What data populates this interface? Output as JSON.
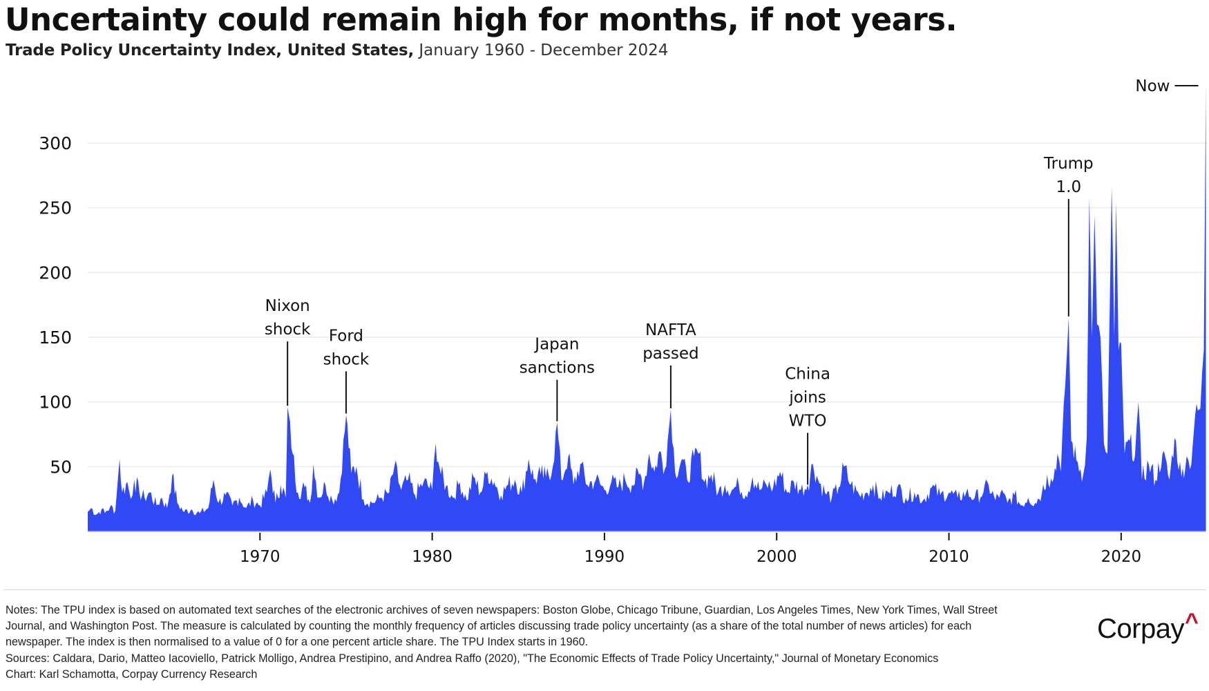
{
  "header": {
    "title": "Uncertainty could remain high for months, if not years.",
    "subtitle_strong": "Trade Policy Uncertainty Index, United States,",
    "subtitle_light": " January 1960 - December 2024"
  },
  "chart_data": {
    "type": "area",
    "title": "Uncertainty could remain high for months, if not years.",
    "subtitle": "Trade Policy Uncertainty Index, United States, January 1960 - December 2024",
    "xlabel": "",
    "ylabel": "",
    "xlim": [
      1960,
      2025
    ],
    "ylim": [
      0,
      345
    ],
    "grid": "horizontal",
    "legend": "none",
    "y_ticks": [
      50,
      100,
      150,
      200,
      250,
      300
    ],
    "y_tick_labels": [
      "50",
      "100",
      "150",
      "200",
      "250",
      "300"
    ],
    "x_ticks": [
      1970,
      1980,
      1990,
      2000,
      2010,
      2020
    ],
    "x_tick_labels": [
      "1970",
      "1980",
      "1990",
      "2000",
      "2010",
      "2020"
    ],
    "fill_color": "#3149f5",
    "series": [
      {
        "name": "Trade Policy Uncertainty Index (US)",
        "points": [
          [
            1960.0,
            15
          ],
          [
            1960.2,
            18
          ],
          [
            1960.5,
            13
          ],
          [
            1960.8,
            17
          ],
          [
            1961.0,
            14
          ],
          [
            1961.3,
            19
          ],
          [
            1961.6,
            16
          ],
          [
            1961.75,
            40
          ],
          [
            1961.85,
            56
          ],
          [
            1962.0,
            30
          ],
          [
            1962.3,
            38
          ],
          [
            1962.5,
            25
          ],
          [
            1962.7,
            40
          ],
          [
            1963.0,
            30
          ],
          [
            1963.3,
            26
          ],
          [
            1963.6,
            30
          ],
          [
            1964.0,
            20
          ],
          [
            1964.3,
            26
          ],
          [
            1964.6,
            18
          ],
          [
            1964.9,
            43
          ],
          [
            1965.2,
            22
          ],
          [
            1965.6,
            15
          ],
          [
            1966.0,
            17
          ],
          [
            1966.5,
            14
          ],
          [
            1967.0,
            18
          ],
          [
            1967.3,
            40
          ],
          [
            1967.6,
            22
          ],
          [
            1968.0,
            28
          ],
          [
            1968.4,
            20
          ],
          [
            1968.8,
            26
          ],
          [
            1969.2,
            18
          ],
          [
            1969.6,
            24
          ],
          [
            1970.0,
            20
          ],
          [
            1970.4,
            30
          ],
          [
            1970.6,
            48
          ],
          [
            1970.9,
            22
          ],
          [
            1971.2,
            36
          ],
          [
            1971.5,
            26
          ],
          [
            1971.6,
            96
          ],
          [
            1971.9,
            60
          ],
          [
            1972.2,
            30
          ],
          [
            1972.6,
            34
          ],
          [
            1972.9,
            22
          ],
          [
            1973.1,
            52
          ],
          [
            1973.4,
            26
          ],
          [
            1973.8,
            36
          ],
          [
            1974.2,
            24
          ],
          [
            1974.6,
            30
          ],
          [
            1975.0,
            90
          ],
          [
            1975.3,
            45
          ],
          [
            1975.6,
            50
          ],
          [
            1976.0,
            25
          ],
          [
            1976.5,
            22
          ],
          [
            1977.0,
            26
          ],
          [
            1977.5,
            30
          ],
          [
            1977.8,
            50
          ],
          [
            1978.2,
            32
          ],
          [
            1978.6,
            40
          ],
          [
            1979.0,
            28
          ],
          [
            1979.5,
            38
          ],
          [
            1980.0,
            32
          ],
          [
            1980.2,
            68
          ],
          [
            1980.5,
            44
          ],
          [
            1980.8,
            35
          ],
          [
            1981.2,
            26
          ],
          [
            1981.6,
            38
          ],
          [
            1982.0,
            24
          ],
          [
            1982.4,
            42
          ],
          [
            1982.8,
            30
          ],
          [
            1983.2,
            46
          ],
          [
            1983.6,
            38
          ],
          [
            1984.0,
            28
          ],
          [
            1984.4,
            36
          ],
          [
            1984.8,
            40
          ],
          [
            1985.2,
            30
          ],
          [
            1985.6,
            56
          ],
          [
            1985.9,
            40
          ],
          [
            1986.3,
            44
          ],
          [
            1986.6,
            42
          ],
          [
            1987.0,
            50
          ],
          [
            1987.25,
            84
          ],
          [
            1987.5,
            40
          ],
          [
            1987.9,
            58
          ],
          [
            1988.2,
            36
          ],
          [
            1988.6,
            52
          ],
          [
            1989.0,
            36
          ],
          [
            1989.5,
            40
          ],
          [
            1990.0,
            32
          ],
          [
            1990.4,
            38
          ],
          [
            1990.8,
            34
          ],
          [
            1991.2,
            40
          ],
          [
            1991.6,
            36
          ],
          [
            1992.0,
            44
          ],
          [
            1992.3,
            38
          ],
          [
            1992.6,
            60
          ],
          [
            1992.9,
            46
          ],
          [
            1993.2,
            62
          ],
          [
            1993.5,
            48
          ],
          [
            1993.85,
            94
          ],
          [
            1994.1,
            46
          ],
          [
            1994.5,
            56
          ],
          [
            1994.8,
            40
          ],
          [
            1995.2,
            58
          ],
          [
            1995.5,
            60
          ],
          [
            1995.8,
            38
          ],
          [
            1996.2,
            44
          ],
          [
            1996.6,
            30
          ],
          [
            1997.0,
            36
          ],
          [
            1997.4,
            32
          ],
          [
            1997.8,
            36
          ],
          [
            1998.2,
            28
          ],
          [
            1998.6,
            42
          ],
          [
            1999.0,
            32
          ],
          [
            1999.4,
            36
          ],
          [
            1999.8,
            34
          ],
          [
            2000.2,
            46
          ],
          [
            2000.6,
            30
          ],
          [
            2001.0,
            38
          ],
          [
            2001.4,
            32
          ],
          [
            2001.8,
            36
          ],
          [
            2002.1,
            52
          ],
          [
            2002.4,
            40
          ],
          [
            2002.8,
            30
          ],
          [
            2003.2,
            26
          ],
          [
            2003.6,
            34
          ],
          [
            2003.9,
            50
          ],
          [
            2004.3,
            36
          ],
          [
            2004.8,
            28
          ],
          [
            2005.2,
            30
          ],
          [
            2005.6,
            36
          ],
          [
            2006.0,
            26
          ],
          [
            2006.5,
            30
          ],
          [
            2007.0,
            34
          ],
          [
            2007.5,
            26
          ],
          [
            2008.0,
            30
          ],
          [
            2008.5,
            24
          ],
          [
            2009.0,
            34
          ],
          [
            2009.5,
            28
          ],
          [
            2010.0,
            30
          ],
          [
            2010.5,
            26
          ],
          [
            2011.0,
            30
          ],
          [
            2011.5,
            26
          ],
          [
            2012.0,
            30
          ],
          [
            2012.3,
            36
          ],
          [
            2012.7,
            24
          ],
          [
            2013.0,
            30
          ],
          [
            2013.4,
            22
          ],
          [
            2013.8,
            28
          ],
          [
            2014.2,
            20
          ],
          [
            2014.6,
            26
          ],
          [
            2015.0,
            22
          ],
          [
            2015.4,
            30
          ],
          [
            2015.7,
            44
          ],
          [
            2016.0,
            38
          ],
          [
            2016.3,
            60
          ],
          [
            2016.5,
            46
          ],
          [
            2016.75,
            112
          ],
          [
            2016.95,
            165
          ],
          [
            2017.1,
            70
          ],
          [
            2017.4,
            55
          ],
          [
            2017.8,
            44
          ],
          [
            2018.0,
            72
          ],
          [
            2018.15,
            258
          ],
          [
            2018.3,
            150
          ],
          [
            2018.45,
            244
          ],
          [
            2018.6,
            160
          ],
          [
            2018.8,
            150
          ],
          [
            2019.0,
            68
          ],
          [
            2019.2,
            60
          ],
          [
            2019.45,
            266
          ],
          [
            2019.6,
            150
          ],
          [
            2019.7,
            254
          ],
          [
            2019.85,
            140
          ],
          [
            2020.0,
            145
          ],
          [
            2020.2,
            60
          ],
          [
            2020.5,
            70
          ],
          [
            2020.8,
            58
          ],
          [
            2021.0,
            100
          ],
          [
            2021.2,
            40
          ],
          [
            2021.6,
            52
          ],
          [
            2022.0,
            40
          ],
          [
            2022.4,
            60
          ],
          [
            2022.8,
            40
          ],
          [
            2023.1,
            72
          ],
          [
            2023.5,
            42
          ],
          [
            2023.8,
            58
          ],
          [
            2024.0,
            48
          ],
          [
            2024.3,
            90
          ],
          [
            2024.6,
            95
          ],
          [
            2024.8,
            140
          ],
          [
            2024.92,
            345
          ]
        ]
      }
    ],
    "annotations": [
      {
        "label_lines": [
          "Nixon",
          "shock"
        ],
        "x": 1971.6,
        "y": 96
      },
      {
        "label_lines": [
          "Ford",
          "shock"
        ],
        "x": 1975.0,
        "y": 90
      },
      {
        "label_lines": [
          "Japan",
          "sanctions"
        ],
        "x": 1987.25,
        "y": 84
      },
      {
        "label_lines": [
          "NAFTA",
          "passed"
        ],
        "x": 1993.85,
        "y": 94
      },
      {
        "label_lines": [
          "China",
          "joins",
          "WTO"
        ],
        "x": 2001.8,
        "y": 35
      },
      {
        "label_lines": [
          "Trump",
          "1.0"
        ],
        "x": 2016.95,
        "y": 165
      },
      {
        "label_lines": [
          "Now"
        ],
        "x": 2024.92,
        "y": 345
      }
    ]
  },
  "footer": {
    "notes_lines": [
      "Notes: The TPU index is based on automated text searches of the electronic archives of seven newspapers: Boston Globe, Chicago Tribune, Guardian, Los Angeles Times, New York Times, Wall Street",
      "Journal, and Washington Post. The measure is calculated by counting the monthly frequency of articles discussing trade policy uncertainty (as a share of the total number of news articles) for each",
      "newspaper. The index is then normalised to a value of 0 for a one percent article share. The TPU Index starts in 1960.",
      "Sources: Caldara, Dario, Matteo Iacoviello, Patrick Molligo, Andrea Prestipino, and Andrea Raffo (2020), \"The Economic Effects of Trade Policy Uncertainty,\" Journal of Monetary Economics",
      "Chart: Karl Schamotta, Corpay Currency Research"
    ],
    "logo_text": "Corpay",
    "logo_caret": "^",
    "logo_caret_color": "#c8102e"
  }
}
